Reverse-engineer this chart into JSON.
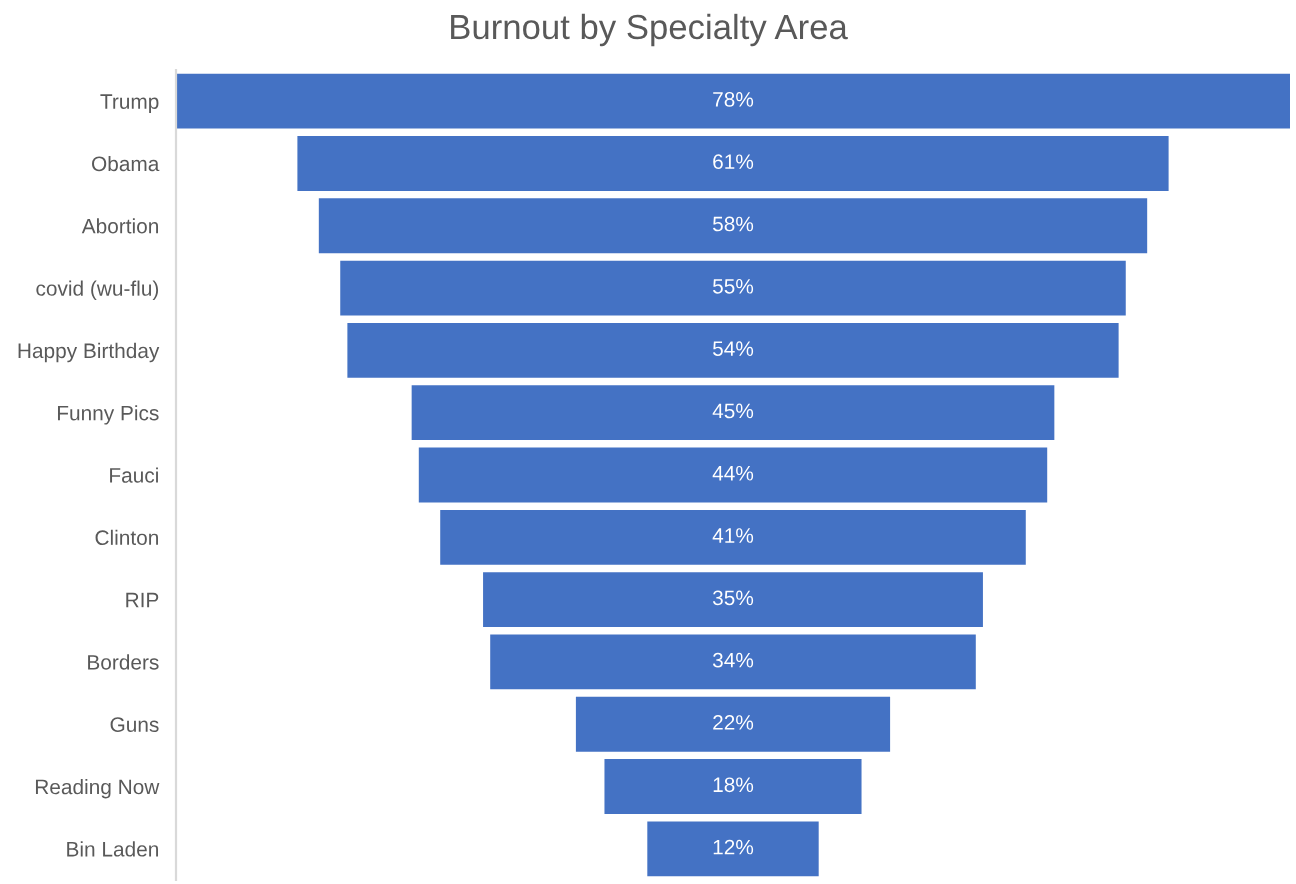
{
  "chart_data": {
    "type": "other",
    "title": "Burnout by Specialty Area",
    "categories": [
      "Trump",
      "Obama",
      "Abortion",
      "covid (wu-flu)",
      "Happy Birthday",
      "Funny Pics",
      "Fauci",
      "Clinton",
      "RIP",
      "Borders",
      "Guns",
      "Reading Now",
      "Bin Laden"
    ],
    "values": [
      78,
      61,
      58,
      55,
      54,
      45,
      44,
      41,
      35,
      34,
      22,
      18,
      12
    ],
    "value_labels": [
      "78%",
      "61%",
      "58%",
      "55%",
      "54%",
      "45%",
      "44%",
      "41%",
      "35%",
      "34%",
      "22%",
      "18%",
      "12%"
    ],
    "color": "#4472c4"
  }
}
